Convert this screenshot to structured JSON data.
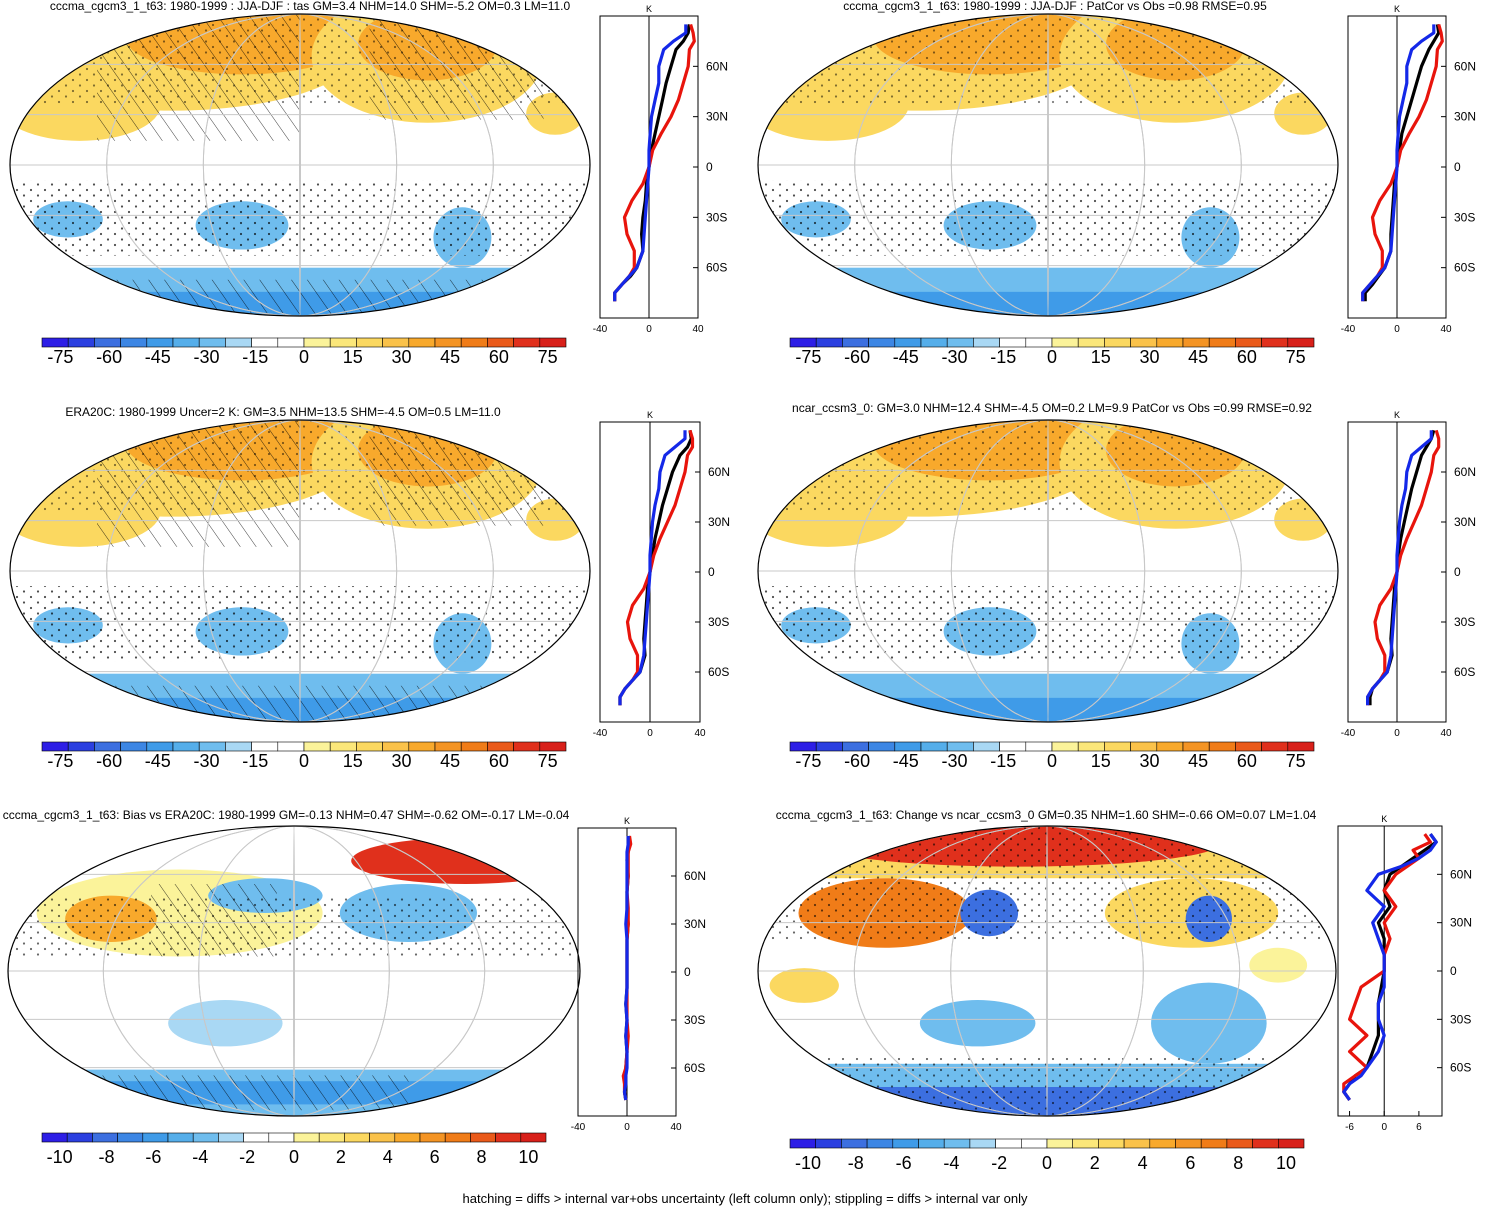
{
  "figure": {
    "caption": "hatching = diffs > internal var+obs uncertainty (left column only); stippling = diffs > internal var only"
  },
  "colors": {
    "deep_blue": "#2d1ee6",
    "blue": "#3c6fe0",
    "mid_blue": "#3f9be8",
    "light_blue": "#6fbdee",
    "pale_blue": "#a9d8f4",
    "white": "#ffffff",
    "pale_yellow": "#fbf39a",
    "yellow": "#fbd860",
    "orange": "#f8a92c",
    "dark_orange": "#f07c18",
    "red": "#e0301c",
    "line_red": "#e8140c",
    "line_blue": "#1428e8",
    "line_black": "#000000",
    "grid": "#c8c8c8"
  },
  "chart_data": [
    {
      "type": "heatmap",
      "title": "cccma_cgcm3_1_t63: 1980-1999 : JJA-DJF : tas GM=3.4 NHM=14.0 SHM=-5.2 OM=0.3 LM=11.0",
      "colorbar_labels": [
        "-75",
        "-60",
        "-45",
        "-30",
        "-15",
        "0",
        "15",
        "30",
        "45",
        "60",
        "75"
      ],
      "profile": {
        "unit_label": "K",
        "xlim": [
          -40,
          40
        ],
        "x_ticks": [
          -40,
          0,
          40
        ],
        "x_tick_labels": [
          "-40",
          "0",
          "40"
        ],
        "lat_ticks": [
          60,
          30,
          0,
          -30,
          -60
        ],
        "lat_labels": [
          "60N",
          "30N",
          "0",
          "30S",
          "60S"
        ],
        "lat": [
          85,
          80,
          75,
          70,
          60,
          50,
          40,
          30,
          20,
          10,
          0,
          -10,
          -20,
          -30,
          -40,
          -50,
          -60,
          -65,
          -70,
          -75,
          -80
        ],
        "series": [
          {
            "name": "model",
            "color": "#000000",
            "values": [
              33,
              32,
              28,
              22,
              18,
              14,
              11,
              8,
              5,
              2,
              0,
              -2,
              -3,
              -5,
              -6,
              -5,
              -10,
              -15,
              -22,
              -28,
              -28
            ]
          },
          {
            "name": "upper",
            "color": "#e8140c",
            "values": [
              34,
              36,
              37,
              33,
              32,
              28,
              24,
              18,
              10,
              3,
              0,
              -5,
              -14,
              -20,
              -18,
              -12,
              -12,
              -16,
              -22,
              -28,
              -28
            ]
          },
          {
            "name": "lower",
            "color": "#1428e8",
            "values": [
              30,
              30,
              20,
              12,
              8,
              8,
              5,
              2,
              1,
              0,
              0,
              -1,
              -2,
              -3,
              -4,
              -5,
              -10,
              -16,
              -22,
              -28,
              -28
            ]
          }
        ]
      }
    },
    {
      "type": "heatmap",
      "title": "cccma_cgcm3_1_t63: 1980-1999 : JJA-DJF : PatCor vs Obs =0.98 RMSE=0.95",
      "colorbar_labels": [
        "-75",
        "-60",
        "-45",
        "-30",
        "-15",
        "0",
        "15",
        "30",
        "45",
        "60",
        "75"
      ],
      "profile": {
        "unit_label": "K",
        "xlim": [
          -40,
          40
        ],
        "x_ticks": [
          -40,
          0,
          40
        ],
        "x_tick_labels": [
          "-40",
          "0",
          "40"
        ],
        "lat_ticks": [
          60,
          30,
          0,
          -30,
          -60
        ],
        "lat_labels": [
          "60N",
          "30N",
          "0",
          "30S",
          "60S"
        ],
        "lat": [
          85,
          80,
          75,
          70,
          60,
          50,
          40,
          30,
          20,
          10,
          0,
          -10,
          -20,
          -30,
          -40,
          -50,
          -60,
          -65,
          -70,
          -75,
          -80
        ],
        "series": [
          {
            "name": "model",
            "color": "#000000",
            "values": [
              33,
              34,
              30,
              26,
              20,
              16,
              12,
              8,
              4,
              2,
              0,
              -2,
              -3,
              -4,
              -5,
              -5,
              -10,
              -15,
              -20,
              -26,
              -26
            ]
          },
          {
            "name": "upper",
            "color": "#e8140c",
            "values": [
              34,
              36,
              37,
              33,
              32,
              28,
              24,
              18,
              10,
              3,
              0,
              -5,
              -14,
              -20,
              -18,
              -12,
              -12,
              -16,
              -22,
              -28,
              -28
            ]
          },
          {
            "name": "lower",
            "color": "#1428e8",
            "values": [
              30,
              30,
              20,
              12,
              8,
              8,
              5,
              2,
              1,
              0,
              0,
              -1,
              -2,
              -3,
              -4,
              -5,
              -10,
              -16,
              -22,
              -28,
              -28
            ]
          }
        ]
      }
    },
    {
      "type": "heatmap",
      "title": "ERA20C: 1980-1999 Uncer=2 K: GM=3.5 NHM=13.5 SHM=-4.5 OM=0.5 LM=11.0",
      "colorbar_labels": [
        "-75",
        "-60",
        "-45",
        "-30",
        "-15",
        "0",
        "15",
        "30",
        "45",
        "60",
        "75"
      ],
      "profile": {
        "unit_label": "K",
        "xlim": [
          -40,
          40
        ],
        "x_ticks": [
          -40,
          0,
          40
        ],
        "x_tick_labels": [
          "-40",
          "0",
          "40"
        ],
        "lat_ticks": [
          60,
          30,
          0,
          -30,
          -60
        ],
        "lat_labels": [
          "60N",
          "30N",
          "0",
          "30S",
          "60S"
        ],
        "lat": [
          85,
          80,
          75,
          70,
          60,
          50,
          40,
          30,
          20,
          10,
          0,
          -10,
          -20,
          -30,
          -40,
          -50,
          -60,
          -65,
          -70,
          -75,
          -80
        ],
        "series": [
          {
            "name": "model",
            "color": "#000000",
            "values": [
              32,
              33,
              30,
              24,
              18,
              14,
              10,
              7,
              4,
              2,
              0,
              -2,
              -3,
              -4,
              -5,
              -4,
              -8,
              -14,
              -20,
              -24,
              -24
            ]
          },
          {
            "name": "upper",
            "color": "#e8140c",
            "values": [
              32,
              34,
              34,
              30,
              28,
              24,
              20,
              14,
              8,
              3,
              0,
              -5,
              -14,
              -18,
              -16,
              -10,
              -10,
              -14,
              -20,
              -24,
              -24
            ]
          },
          {
            "name": "lower",
            "color": "#1428e8",
            "values": [
              28,
              28,
              20,
              12,
              8,
              7,
              4,
              2,
              1,
              0,
              0,
              -1,
              -2,
              -3,
              -4,
              -5,
              -8,
              -14,
              -20,
              -24,
              -24
            ]
          }
        ]
      }
    },
    {
      "type": "heatmap",
      "title": "ncar_ccsm3_0: GM=3.0 NHM=12.4 SHM=-4.5 OM=0.2 LM=9.9 PatCor vs Obs =0.99 RMSE=0.92",
      "colorbar_labels": [
        "-75",
        "-60",
        "-45",
        "-30",
        "-15",
        "0",
        "15",
        "30",
        "45",
        "60",
        "75"
      ],
      "profile": {
        "unit_label": "K",
        "xlim": [
          -40,
          40
        ],
        "x_ticks": [
          -40,
          0,
          40
        ],
        "x_tick_labels": [
          "-40",
          "0",
          "40"
        ],
        "lat_ticks": [
          60,
          30,
          0,
          -30,
          -60
        ],
        "lat_labels": [
          "60N",
          "30N",
          "0",
          "30S",
          "60S"
        ],
        "lat": [
          85,
          80,
          75,
          70,
          60,
          50,
          40,
          30,
          20,
          10,
          0,
          -10,
          -20,
          -30,
          -40,
          -50,
          -60,
          -65,
          -70,
          -75,
          -80
        ],
        "series": [
          {
            "name": "model",
            "color": "#000000",
            "values": [
              30,
              28,
              24,
              20,
              16,
              12,
              9,
              6,
              3,
              1,
              0,
              -2,
              -3,
              -4,
              -5,
              -4,
              -8,
              -14,
              -20,
              -22,
              -22
            ]
          },
          {
            "name": "upper",
            "color": "#e8140c",
            "values": [
              32,
              34,
              34,
              30,
              28,
              24,
              20,
              14,
              8,
              3,
              0,
              -5,
              -14,
              -18,
              -16,
              -10,
              -10,
              -14,
              -20,
              -24,
              -24
            ]
          },
          {
            "name": "lower",
            "color": "#1428e8",
            "values": [
              28,
              28,
              20,
              12,
              8,
              7,
              4,
              2,
              1,
              0,
              0,
              -1,
              -2,
              -3,
              -4,
              -5,
              -8,
              -14,
              -20,
              -24,
              -24
            ]
          }
        ]
      }
    },
    {
      "type": "heatmap",
      "title": "cccma_cgcm3_1_t63: Bias vs ERA20C: 1980-1999 GM=-0.13 NHM=0.47 SHM=-0.62 OM=-0.17 LM=-0.04",
      "colorbar_labels": [
        "-10",
        "-8",
        "-6",
        "-4",
        "-2",
        "0",
        "2",
        "4",
        "6",
        "8",
        "10"
      ],
      "profile": {
        "unit_label": "K",
        "xlim": [
          -40,
          40
        ],
        "x_ticks": [
          -40,
          0,
          40
        ],
        "x_tick_labels": [
          "-40",
          "0",
          "40"
        ],
        "lat_ticks": [
          60,
          30,
          0,
          -30,
          -60
        ],
        "lat_labels": [
          "60N",
          "30N",
          "0",
          "30S",
          "60S"
        ],
        "lat": [
          85,
          80,
          75,
          70,
          60,
          50,
          40,
          30,
          20,
          10,
          0,
          -10,
          -20,
          -30,
          -40,
          -50,
          -60,
          -65,
          -70,
          -75,
          -80
        ],
        "series": [
          {
            "name": "model",
            "color": "#000000",
            "values": [
              1,
              2,
              1,
              0,
              1,
              0,
              0,
              1,
              0,
              0,
              0,
              0,
              -1,
              0,
              -1,
              0,
              -1,
              -1,
              -1,
              -2,
              -1
            ]
          },
          {
            "name": "upper",
            "color": "#e8140c",
            "values": [
              2,
              3,
              1,
              1,
              1,
              0,
              1,
              1,
              0,
              0,
              0,
              0,
              0,
              0,
              1,
              0,
              -1,
              -3,
              -2,
              -2,
              -1
            ]
          },
          {
            "name": "lower",
            "color": "#1428e8",
            "values": [
              1,
              1,
              0,
              0,
              0,
              0,
              0,
              -1,
              0,
              0,
              0,
              0,
              -1,
              0,
              -1,
              0,
              0,
              -1,
              -1,
              -2,
              -1
            ]
          }
        ]
      }
    },
    {
      "type": "heatmap",
      "title": "cccma_cgcm3_1_t63: Change vs ncar_ccsm3_0 GM=0.35 NHM=1.60 SHM=-0.66 OM=0.07 LM=1.04",
      "colorbar_labels": [
        "-10",
        "-8",
        "-6",
        "-4",
        "-2",
        "0",
        "2",
        "4",
        "6",
        "8",
        "10"
      ],
      "profile": {
        "unit_label": "K",
        "xlim": [
          -8,
          10
        ],
        "x_ticks": [
          -6,
          0,
          6
        ],
        "x_tick_labels": [
          "-6",
          "0",
          "6"
        ],
        "lat_ticks": [
          60,
          30,
          0,
          -30,
          -60
        ],
        "lat_labels": [
          "60N",
          "30N",
          "0",
          "30S",
          "60S"
        ],
        "lat": [
          85,
          80,
          75,
          70,
          65,
          60,
          50,
          40,
          30,
          20,
          10,
          0,
          -10,
          -20,
          -30,
          -40,
          -50,
          -60,
          -65,
          -70,
          -75,
          -80
        ],
        "series": [
          {
            "name": "model",
            "color": "#000000",
            "values": [
              8,
              9,
              7,
              5,
              3,
              1,
              0,
              1,
              -1,
              0,
              0,
              0,
              -0.5,
              -1,
              -1,
              -1,
              -2,
              -3,
              -5,
              -6,
              -7,
              -6
            ]
          },
          {
            "name": "upper",
            "color": "#e8140c",
            "values": [
              7,
              8,
              5,
              6,
              4,
              2,
              0,
              2,
              0,
              1,
              0,
              0,
              -4,
              -5,
              -6,
              -3,
              -6,
              -3,
              -5,
              -7,
              -7,
              -6
            ]
          },
          {
            "name": "lower",
            "color": "#1428e8",
            "values": [
              8,
              9,
              8,
              6,
              3,
              -1,
              -3,
              0,
              -2,
              -1,
              0,
              0,
              0,
              -1,
              -1,
              0,
              -1,
              -3,
              -4,
              -6,
              -7,
              -6
            ]
          }
        ]
      }
    }
  ]
}
